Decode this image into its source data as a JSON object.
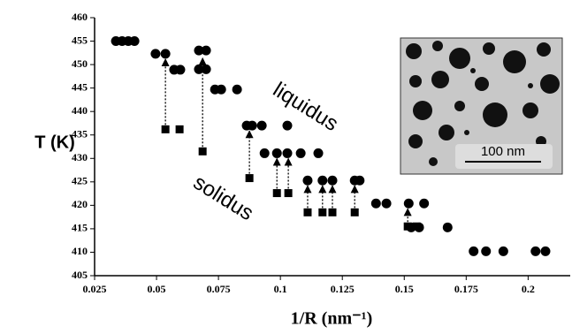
{
  "chart_data": {
    "type": "scatter",
    "x_label": "1/R (nm⁻¹)",
    "y_label": "T (K)",
    "xlim": [
      0.025,
      0.217
    ],
    "xticks": [
      0.025,
      0.05,
      0.075,
      0.1,
      0.125,
      0.15,
      0.175,
      0.2
    ],
    "ylim": [
      405,
      460
    ],
    "yticks": [
      405,
      410,
      415,
      420,
      425,
      430,
      435,
      440,
      445,
      450,
      455,
      460
    ],
    "series": [
      {
        "name": "liquidus",
        "marker": "circle",
        "color": "#000000",
        "x": [
          0.0336,
          0.0361,
          0.0386,
          0.0411,
          0.0496,
          0.0536,
          0.0571,
          0.0596,
          0.0671,
          0.07,
          0.0671,
          0.07,
          0.0736,
          0.0761,
          0.0825,
          0.0864,
          0.0886,
          0.0925,
          0.1028,
          0.0936,
          0.0986,
          0.1028,
          0.1082,
          0.1153,
          0.111,
          0.117,
          0.121,
          0.13,
          0.132,
          0.1386,
          0.1428,
          0.1518,
          0.158,
          0.1528,
          0.156,
          0.1675,
          0.178,
          0.183,
          0.19,
          0.203,
          0.207
        ],
        "values": [
          455,
          455,
          455,
          455,
          452.3,
          452.3,
          448.9,
          448.9,
          453,
          453,
          449,
          449,
          444.7,
          444.7,
          444.7,
          437,
          437,
          437,
          437,
          431.1,
          431.1,
          431.1,
          431.1,
          431.1,
          425.3,
          425.3,
          425.3,
          425.3,
          425.3,
          420.4,
          420.4,
          420.4,
          420.4,
          415.3,
          415.3,
          415.3,
          410.2,
          410.2,
          410.2,
          410.2,
          410.2
        ]
      },
      {
        "name": "solidus",
        "marker": "square",
        "color": "#000000",
        "x": [
          0.0536,
          0.0593,
          0.0686,
          0.0875,
          0.0986,
          0.1032,
          0.111,
          0.117,
          0.121,
          0.13,
          0.1514,
          0.155
        ],
        "values": [
          436.2,
          436.2,
          431.5,
          425.8,
          422.6,
          422.6,
          418.5,
          418.5,
          418.5,
          418.5,
          415.5,
          415.5
        ]
      }
    ],
    "arrows": [
      {
        "x": 0.0536,
        "from": 436.2,
        "to": 452.3
      },
      {
        "x": 0.0686,
        "from": 431.5,
        "to": 452.5
      },
      {
        "x": 0.0875,
        "from": 425.8,
        "to": 437
      },
      {
        "x": 0.0986,
        "from": 422.6,
        "to": 431.1
      },
      {
        "x": 0.1032,
        "from": 422.6,
        "to": 431.1
      },
      {
        "x": 0.111,
        "from": 418.5,
        "to": 425.3
      },
      {
        "x": 0.117,
        "from": 418.5,
        "to": 425.3
      },
      {
        "x": 0.121,
        "from": 418.5,
        "to": 425.3
      },
      {
        "x": 0.13,
        "from": 418.5,
        "to": 425.3
      },
      {
        "x": 0.1514,
        "from": 415.5,
        "to": 420.4
      }
    ],
    "inset_label": "100 nm"
  }
}
